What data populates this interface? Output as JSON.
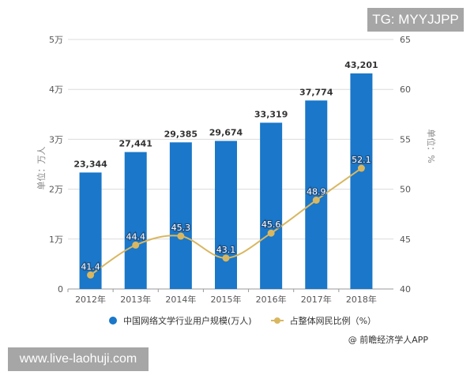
{
  "chart_data": {
    "type": "bar+line",
    "categories": [
      "2012年",
      "2013年",
      "2014年",
      "2015年",
      "2016年",
      "2017年",
      "2018年"
    ],
    "series": [
      {
        "name": "中国网络文学行业用户规模(万人)",
        "type": "bar",
        "axis": "left",
        "color": "#1a77c9",
        "values": [
          23344,
          27441,
          29385,
          29674,
          33319,
          37774,
          43201
        ],
        "labels": [
          "23,344",
          "27,441",
          "29,385",
          "29,674",
          "33,319",
          "37,774",
          "43,201"
        ]
      },
      {
        "name": "占整体网民比例（%）",
        "type": "line",
        "axis": "right",
        "color": "#d9b760",
        "values": [
          41.4,
          44.4,
          45.3,
          43.1,
          45.6,
          48.9,
          52.1
        ],
        "labels": [
          "41.4",
          "44.4",
          "45.3",
          "43.1",
          "45.6",
          "48.9",
          "52.1"
        ]
      }
    ],
    "left_axis": {
      "label": "单位：万人",
      "ticks": [
        "0",
        "1万",
        "2万",
        "3万",
        "4万",
        "5万"
      ],
      "range": [
        0,
        50000
      ]
    },
    "right_axis": {
      "label": "单位：%",
      "ticks": [
        "40",
        "45",
        "50",
        "55",
        "60",
        "65"
      ],
      "range": [
        40,
        65
      ]
    },
    "grid": true,
    "legend_position": "bottom"
  },
  "legend": {
    "bar_label": "中国网络文学行业用户规模(万人)",
    "line_label": "占整体网民比例（%）"
  },
  "source": "@ 前瞻经济学人APP",
  "overlays": {
    "top_badge": "TG: MYYJJPP",
    "bottom_badge": "www.live-laohuji.com"
  }
}
